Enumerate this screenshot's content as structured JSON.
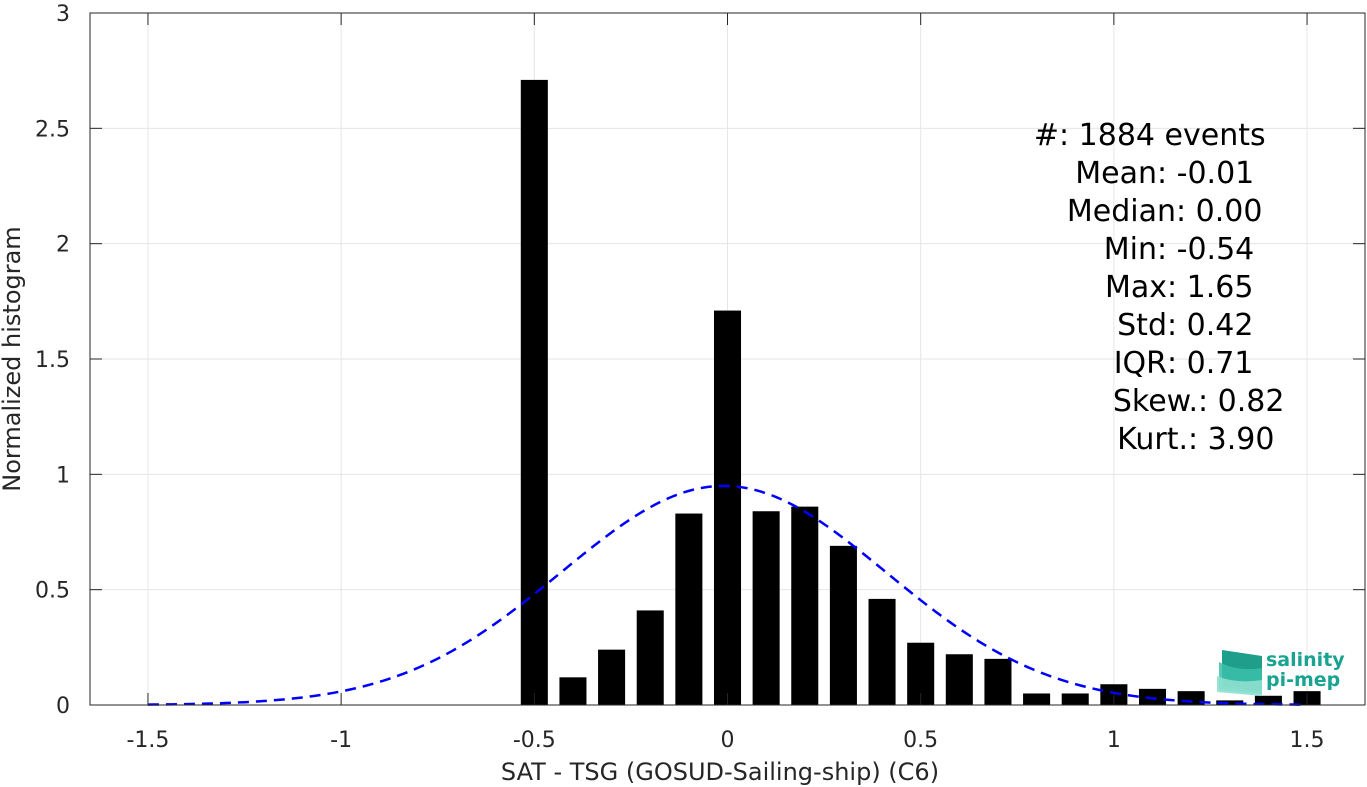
{
  "chart_data": {
    "type": "bar",
    "xlabel": "SAT - TSG (GOSUD-Sailing-ship) (C6)",
    "ylabel": "Normalized histogram",
    "xlim": [
      -1.65,
      1.65
    ],
    "ylim": [
      0,
      3
    ],
    "xticks": [
      -1.5,
      -1,
      -0.5,
      0,
      0.5,
      1,
      1.5
    ],
    "xtick_labels": [
      "-1.5",
      "-1",
      "-0.5",
      "0",
      "0.5",
      "1",
      "1.5"
    ],
    "yticks": [
      0,
      0.5,
      1,
      1.5,
      2,
      2.5,
      3
    ],
    "ytick_labels": [
      "0",
      "0.5",
      "1",
      "1.5",
      "2",
      "2.5",
      "3"
    ],
    "grid": true,
    "bar_width": 0.07,
    "bars": {
      "x": [
        -0.5,
        -0.4,
        -0.3,
        -0.2,
        -0.1,
        0.0,
        0.1,
        0.2,
        0.3,
        0.4,
        0.5,
        0.6,
        0.7,
        0.8,
        0.9,
        1.0,
        1.1,
        1.2,
        1.3,
        1.4,
        1.5
      ],
      "values": [
        2.71,
        0.12,
        0.24,
        0.41,
        0.83,
        1.71,
        0.84,
        0.86,
        0.69,
        0.46,
        0.27,
        0.22,
        0.2,
        0.05,
        0.05,
        0.09,
        0.07,
        0.06,
        0.02,
        0.04,
        0.06
      ],
      "color": "#000000"
    },
    "fit_curve": {
      "type": "gaussian",
      "mean": -0.01,
      "std": 0.42,
      "x_range": [
        -1.5,
        1.5
      ],
      "color": "#0000ff",
      "style": "dashed"
    },
    "stats": [
      {
        "label": "#  ",
        "value": ": 1884 events"
      },
      {
        "label": "Mean ",
        "value": ": -0.01"
      },
      {
        "label": "Median ",
        "value": ": 0.00"
      },
      {
        "label": "Min ",
        "value": ": -0.54"
      },
      {
        "label": "Max ",
        "value": ": 1.65"
      },
      {
        "label": "Std ",
        "value": ": 0.42"
      },
      {
        "label": "IQR ",
        "value": ": 0.71"
      },
      {
        "label": "Skew. ",
        "value": ": 0.82"
      },
      {
        "label": "Kurt. ",
        "value": ": 3.90"
      }
    ]
  },
  "logo": {
    "line1": "salinity",
    "line2": "pi-mep",
    "color": "#1aa391"
  }
}
